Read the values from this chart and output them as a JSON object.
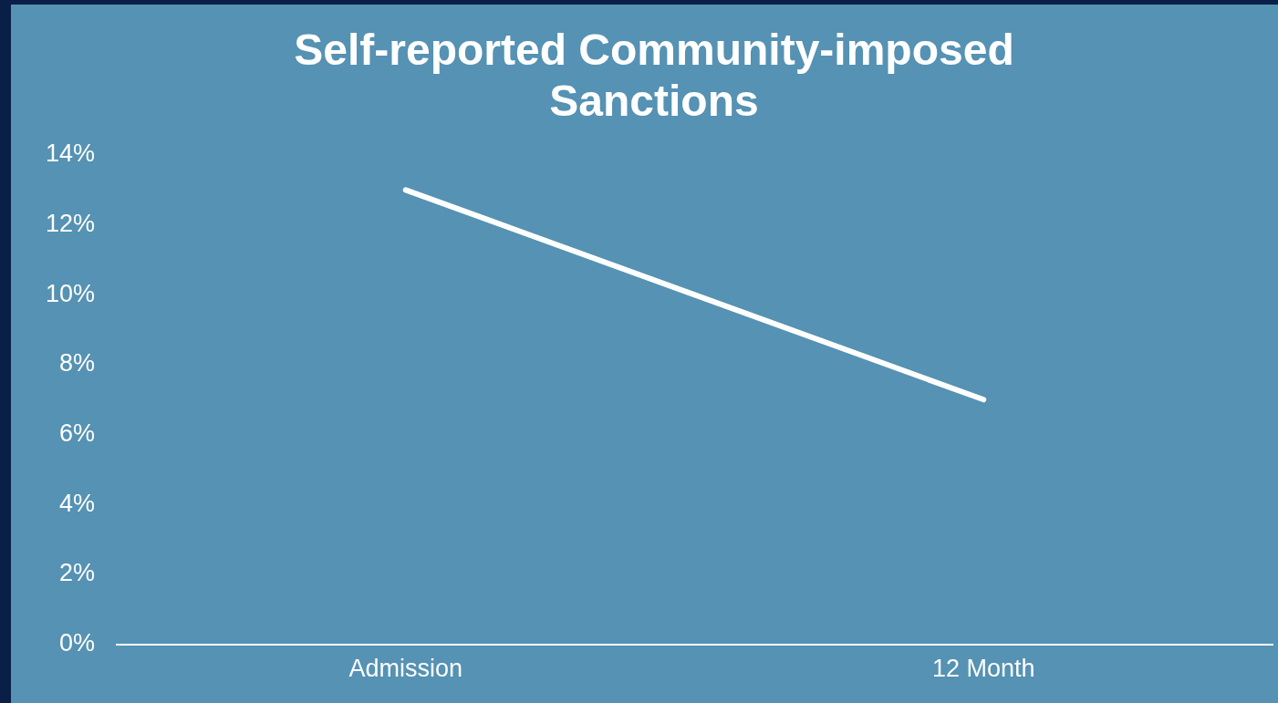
{
  "chart_data": {
    "type": "line",
    "title": "Self-reported Community-imposed Sanctions",
    "categories": [
      "Admission",
      "12 Month"
    ],
    "series": [
      {
        "color": "#ffffff",
        "values": [
          13,
          7
        ]
      }
    ],
    "ylim": [
      0,
      14
    ],
    "yticks": [
      {
        "value": 0,
        "label": "0%"
      },
      {
        "value": 2,
        "label": "2%"
      },
      {
        "value": 4,
        "label": "4%"
      },
      {
        "value": 6,
        "label": "6%"
      },
      {
        "value": 8,
        "label": "8%"
      },
      {
        "value": 10,
        "label": "10%"
      },
      {
        "value": 12,
        "label": "12%"
      },
      {
        "value": 14,
        "label": "14%"
      }
    ],
    "grid": false,
    "legend": false,
    "marker": "none",
    "line_style": "solid"
  }
}
